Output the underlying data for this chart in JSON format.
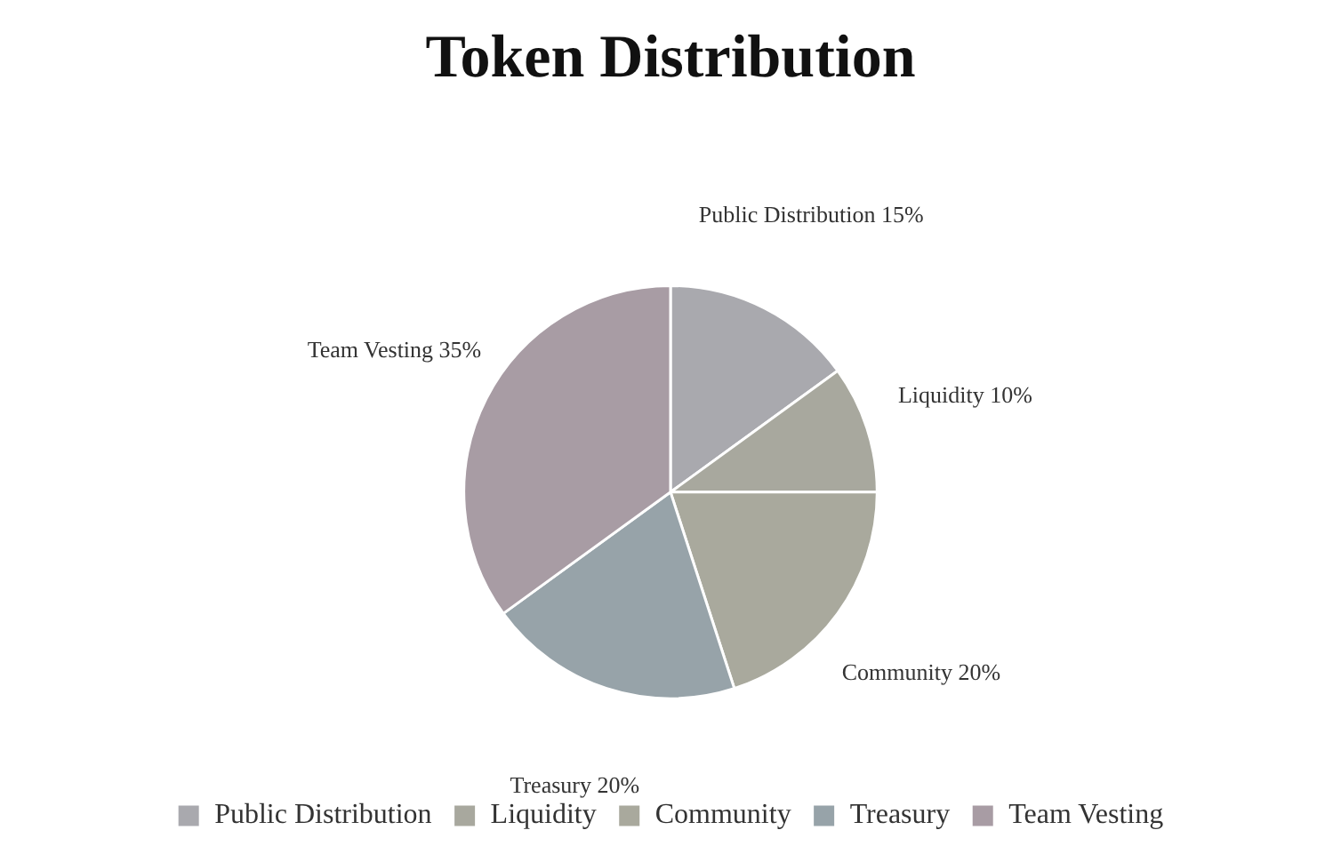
{
  "chart_data": {
    "type": "pie",
    "title": "Token Distribution",
    "categories": [
      "Public Distribution",
      "Liquidity",
      "Community",
      "Treasury",
      "Team Vesting"
    ],
    "values": [
      15,
      10,
      20,
      20,
      35
    ],
    "value_labels": [
      "15%",
      "10%",
      "20%",
      "20%",
      "35%"
    ],
    "colors": [
      "#a9a9ae",
      "#a8a89e",
      "#a9a99d",
      "#97a3a9",
      "#a89ca4"
    ],
    "legend": "bottom"
  }
}
